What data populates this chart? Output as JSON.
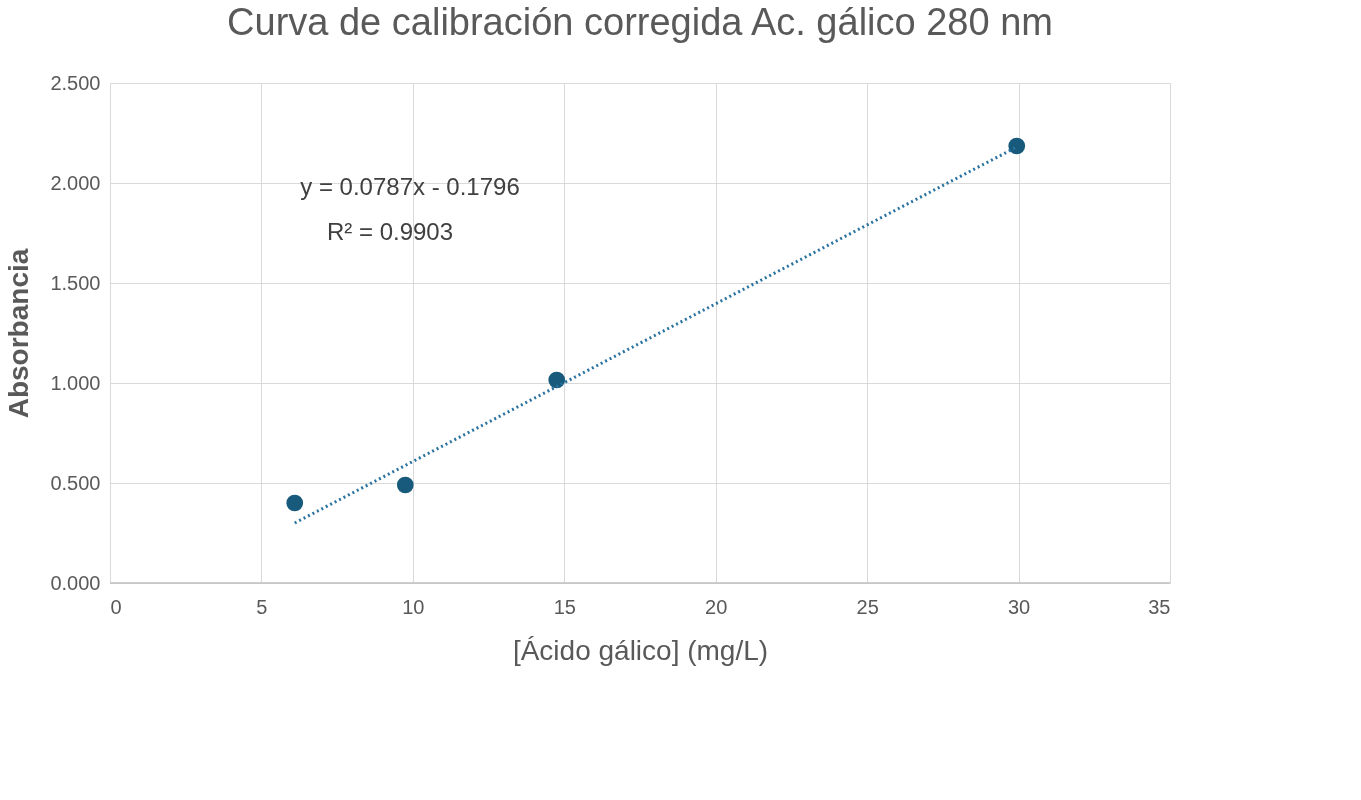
{
  "chart_data": {
    "type": "scatter",
    "title": "Curva de calibración corregida Ac. gálico 280 nm",
    "xlabel": "[Ácido gálico] (mg/L)",
    "ylabel": "Absorbancia",
    "series": [
      {
        "color": "#175a7c",
        "x": [
          6.1,
          9.75,
          14.75,
          29.94
        ],
        "values": [
          0.4,
          0.49,
          1.015,
          2.185
        ],
        "marker": "circle"
      },
      {
        "type": "line",
        "color": "#2a73a0",
        "x": [
          6.1,
          29.94
        ],
        "values": [
          0.3,
          2.18
        ],
        "line_style": "dotted"
      }
    ],
    "xlim": [
      0,
      35
    ],
    "xticks": [
      0,
      5,
      10,
      15,
      20,
      25,
      30,
      35
    ],
    "ylim": [
      0,
      2.5
    ],
    "yticks": [
      {
        "value": 0,
        "label": "0.000"
      },
      {
        "value": 0.5,
        "label": "0.500"
      },
      {
        "value": 1,
        "label": "1.000"
      },
      {
        "value": 1.5,
        "label": "1.500"
      },
      {
        "value": 2,
        "label": "2.000"
      },
      {
        "value": 2.5,
        "label": "2.500"
      }
    ],
    "annotations": [
      "y = 0.0787x - 0.1796",
      "R² = 0.9903"
    ],
    "grid": true
  }
}
